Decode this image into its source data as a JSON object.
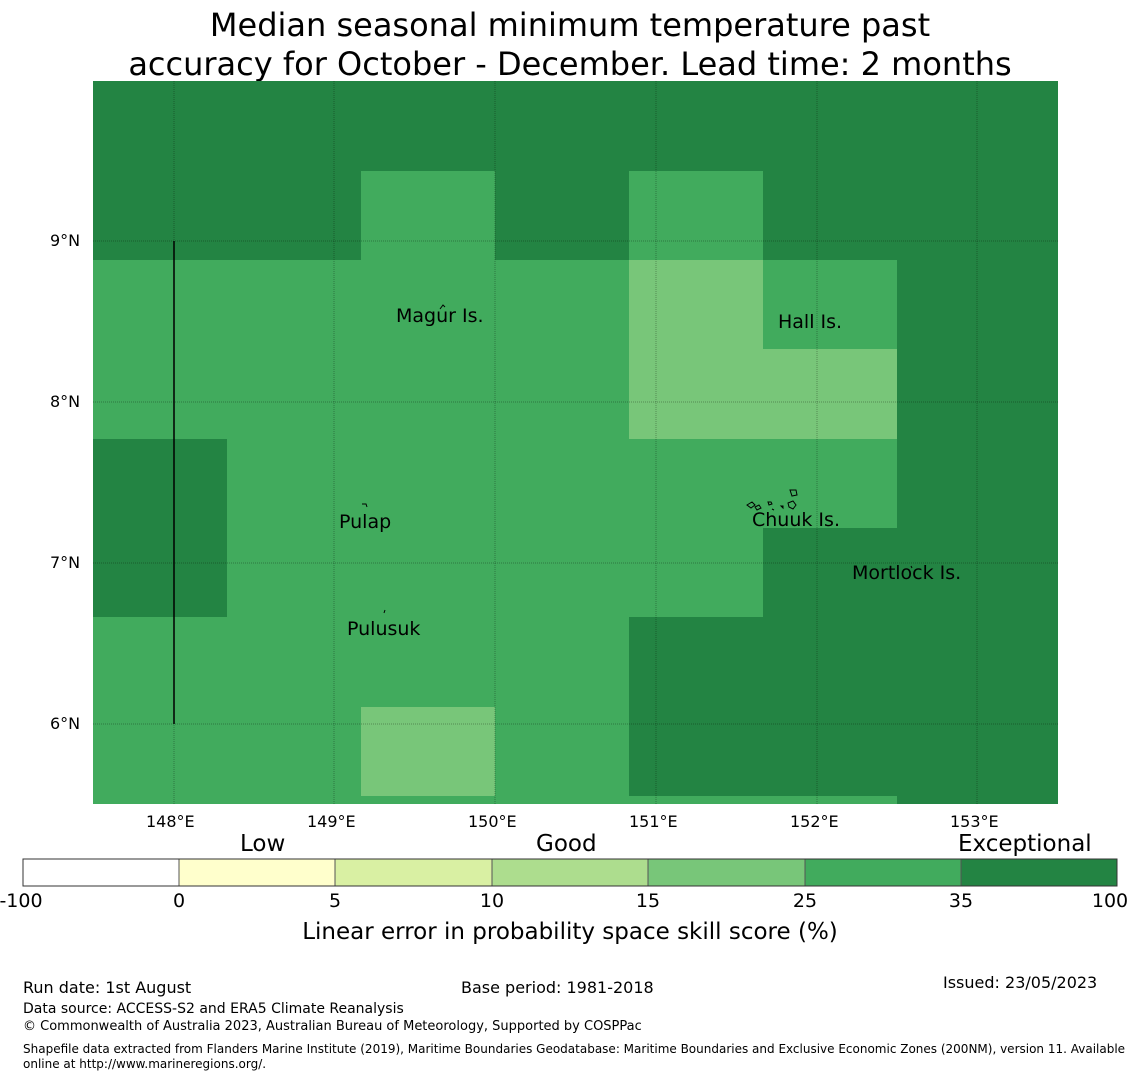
{
  "title_line1": "Median seasonal minimum temperature past",
  "title_line2": "accuracy for October - December. Lead time: 2 months",
  "map": {
    "lon_labels": [
      "148°E",
      "149°E",
      "150°E",
      "151°E",
      "152°E",
      "153°E"
    ],
    "lat_labels": [
      "9°N",
      "8°N",
      "7°N",
      "6°N"
    ],
    "places": [
      {
        "name": "Magur Is.",
        "lon": 149.55,
        "lat": 8.55
      },
      {
        "name": "Hall Is.",
        "lon": 151.85,
        "lat": 8.5
      },
      {
        "name": "Pulap",
        "lon": 149.2,
        "lat": 7.3
      },
      {
        "name": "Chuuk Is.",
        "lon": 151.75,
        "lat": 7.35
      },
      {
        "name": "Mortlock Is.",
        "lon": 152.6,
        "lat": 6.95
      },
      {
        "name": "Pulusuk",
        "lon": 149.3,
        "lat": 6.7
      }
    ]
  },
  "legend": {
    "categories": [
      "Low",
      "Good",
      "Exceptional"
    ],
    "ticks": [
      "-100",
      "0",
      "5",
      "10",
      "15",
      "25",
      "35",
      "100"
    ],
    "colors": [
      "#ffffff",
      "#ffffcc",
      "#d9f0a3",
      "#addd8e",
      "#78c679",
      "#41ab5d",
      "#238443"
    ],
    "title": "Linear error in probability space skill score (%)"
  },
  "footer": {
    "run_date": "Run date: 1st August",
    "base_period": "Base period: 1981-2018",
    "issued": "Issued: 23/05/2023",
    "data_source": "Data source: ACCESS-S2 and ERA5 Climate Reanalysis",
    "copyright": "© Commonwealth of Australia 2023, Australian Bureau of Meteorology, Supported by COSPPac",
    "shapefile": "Shapefile data extracted from Flanders Marine Institute (2019), Maritime Boundaries Geodatabase: Maritime Boundaries and Exclusive Economic Zones (200NM), version 11. Available online at http://www.marineregions.org/."
  }
}
